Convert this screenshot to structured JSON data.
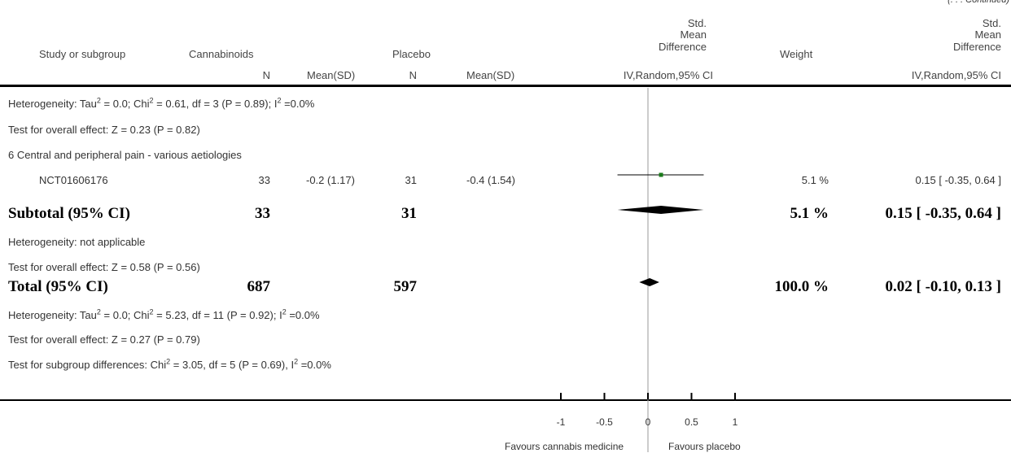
{
  "continued": "(. . . Continued)",
  "header": {
    "study": "Study or subgroup",
    "group1": "Cannabinoids",
    "group2": "Placebo",
    "effect_line1": "Std.",
    "effect_line2": "Mean",
    "effect_line3": "Difference",
    "weight": "Weight",
    "n1": "N",
    "meansd1": "Mean(SD)",
    "n2": "N",
    "meansd2": "Mean(SD)",
    "method": "IV,Random,95% CI",
    "method_right": "IV,Random,95% CI"
  },
  "rows": {
    "het1_a": "Heterogeneity: Tau",
    "het1_b": " = 0.0; Chi",
    "het1_c": " = 0.61, df = 3 (P = 0.89); I",
    "het1_d": " =0.0%",
    "overall1": "Test for overall effect: Z = 0.23 (P = 0.82)",
    "subgroup6": "6 Central and peripheral pain - various aetiologies",
    "study_name": "NCT01606176",
    "study_n1": "33",
    "study_msd1": "-0.2 (1.17)",
    "study_n2": "31",
    "study_msd2": "-0.4 (1.54)",
    "study_weight": "5.1 %",
    "study_ci": "0.15 [ -0.35, 0.64 ]",
    "subtotal_label": "Subtotal (95% CI)",
    "subtotal_n1": "33",
    "subtotal_n2": "31",
    "subtotal_weight": "5.1 %",
    "subtotal_ci": "0.15 [ -0.35, 0.64 ]",
    "het2": "Heterogeneity: not applicable",
    "overall2": "Test for overall effect: Z = 0.58 (P = 0.56)",
    "total_label": "Total (95% CI)",
    "total_n1": "687",
    "total_n2": "597",
    "total_weight": "100.0 %",
    "total_ci": "0.02 [ -0.10, 0.13 ]",
    "het3_a": "Heterogeneity: Tau",
    "het3_b": " = 0.0; Chi",
    "het3_c": " = 5.23, df = 11 (P = 0.92); I",
    "het3_d": " =0.0%",
    "overall3": "Test for overall effect: Z = 0.27 (P = 0.79)",
    "subgroupdiff_a": "Test for subgroup differences: Chi",
    "subgroupdiff_b": " = 3.05, df = 5 (P = 0.69), I",
    "subgroupdiff_c": " =0.0%",
    "sup2": "2"
  },
  "axis": {
    "favours_left": "Favours cannabis medicine",
    "favours_right": "Favours placebo"
  },
  "colors": {
    "study_square": "#1a7a1a",
    "diamond": "#000000",
    "line": "#000000"
  },
  "chart_data": {
    "type": "forest",
    "measure": "Std. Mean Difference IV,Random,95% CI",
    "xlim": [
      -1,
      1
    ],
    "ticks": [
      -1,
      -0.5,
      0,
      0.5,
      1
    ],
    "tick_labels": [
      "-1",
      "-0.5",
      "0",
      "0.5",
      "1"
    ],
    "studies": [
      {
        "name": "NCT01606176",
        "estimate": 0.15,
        "ci": [
          -0.35,
          0.64
        ],
        "weight": 5.1
      }
    ],
    "summaries": [
      {
        "name": "Subtotal (95% CI)",
        "estimate": 0.15,
        "ci": [
          -0.35,
          0.64
        ]
      },
      {
        "name": "Total (95% CI)",
        "estimate": 0.02,
        "ci": [
          -0.1,
          0.13
        ]
      }
    ]
  }
}
